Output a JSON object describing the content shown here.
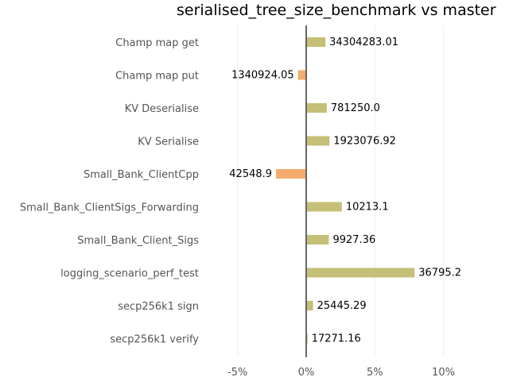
{
  "chart_data": {
    "type": "bar",
    "orientation": "horizontal",
    "title": "serialised_tree_size_benchmark vs master",
    "xlabel": "",
    "ylabel": "",
    "xlim": [
      -0.05,
      0.12
    ],
    "xticks": [
      -0.05,
      0,
      0.05,
      0.1
    ],
    "xtick_labels": [
      "-5%",
      "0%",
      "5%",
      "10%"
    ],
    "grid": true,
    "colors": {
      "positive": "#c5bf77",
      "negative": "#f4ab6b",
      "axis": "#666666"
    },
    "categories": [
      "Champ map get",
      "Champ map put",
      "KV Deserialise",
      "KV Serialise",
      "Small_Bank_ClientCpp",
      "Small_Bank_ClientSigs_Forwarding",
      "Small_Bank_Client_Sigs",
      "logging_scenario_perf_test",
      "secp256k1 sign",
      "secp256k1 verify"
    ],
    "values": [
      0.014,
      -0.006,
      0.015,
      0.017,
      -0.022,
      0.026,
      0.0165,
      0.079,
      0.005,
      0.001
    ],
    "data_labels": [
      "34304283.01",
      "1340924.05",
      "781250.0",
      "1923076.92",
      "42548.9",
      "10213.1",
      "9927.36",
      "36795.2",
      "25445.29",
      "17271.16"
    ]
  }
}
